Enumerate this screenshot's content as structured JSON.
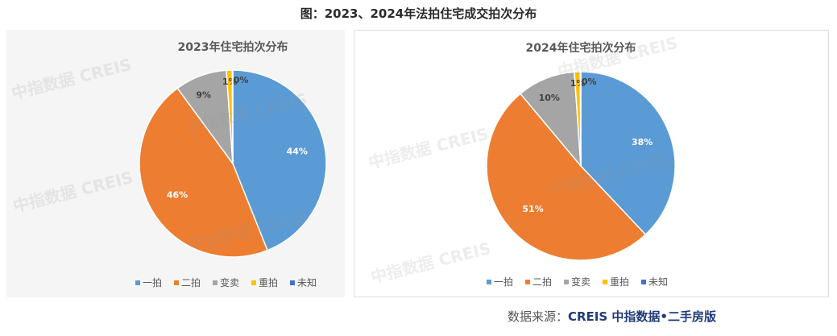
{
  "figure_title": "图：2023、2024年法拍住宅成交拍次分布",
  "source": {
    "prefix": "数据来源：",
    "brand": "CREIS 中指数据•二手房版"
  },
  "watermark": "中指数据 CREIS",
  "colors": {
    "一拍": "#5b9bd5",
    "二拍": "#ed7d31",
    "变卖": "#a5a5a5",
    "重拍": "#ffc000",
    "未知": "#4472c4"
  },
  "chart_data": [
    {
      "type": "pie",
      "title": "2023年住宅拍次分布",
      "categories": [
        "一拍",
        "二拍",
        "变卖",
        "重拍",
        "未知"
      ],
      "values": [
        44,
        46,
        9,
        1,
        0.1
      ],
      "data_labels": [
        "44%",
        "46%",
        "9%",
        "1%",
        "0%"
      ],
      "legend": "bottom"
    },
    {
      "type": "pie",
      "title": "2024年住宅拍次分布",
      "categories": [
        "一拍",
        "二拍",
        "变卖",
        "重拍",
        "未知"
      ],
      "values": [
        38,
        51,
        10,
        1,
        0.1
      ],
      "data_labels": [
        "38%",
        "51%",
        "10%",
        "1%",
        "0%"
      ],
      "legend": "bottom"
    }
  ]
}
